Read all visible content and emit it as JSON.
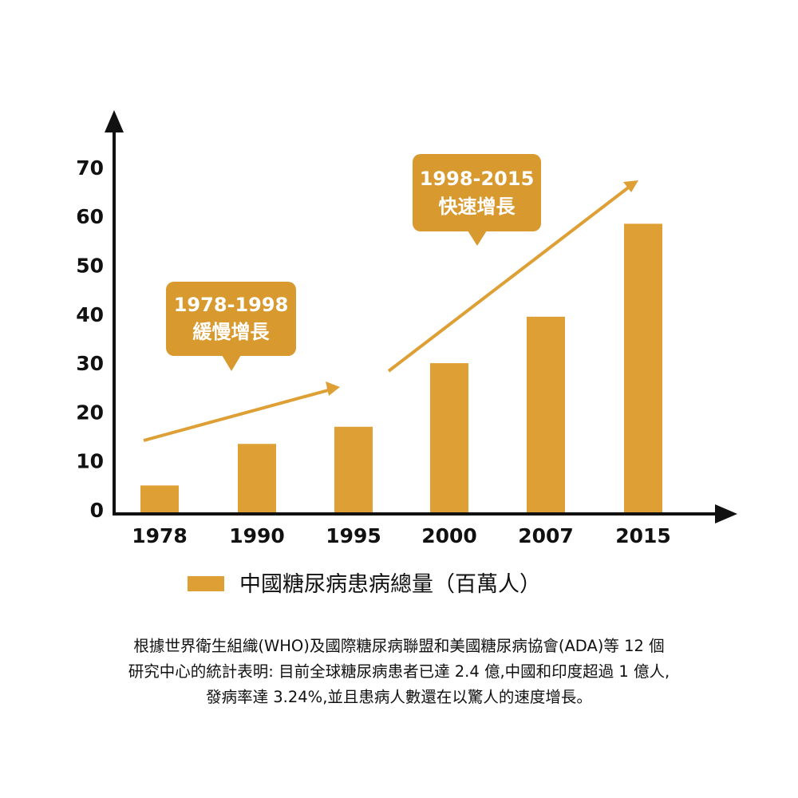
{
  "colors": {
    "bar": "#DEA035",
    "axis": "#111111",
    "callout": "#D8992F"
  },
  "chart_data": {
    "type": "bar",
    "categories": [
      "1978",
      "1990",
      "1995",
      "2000",
      "2007",
      "2015"
    ],
    "values": [
      5,
      13.5,
      17,
      30,
      39.5,
      58.5
    ],
    "ylim": [
      0,
      70
    ],
    "yticks": [
      "0",
      "10",
      "20",
      "30",
      "40",
      "50",
      "60",
      "70"
    ],
    "legend": "中國糖尿病患病總量（百萬人）",
    "legend_position": "bottom",
    "grid": false,
    "annotations": [
      {
        "line1": "1978-1998",
        "line2": "緩慢增長"
      },
      {
        "line1": "1998-2015",
        "line2": "快速增長"
      }
    ]
  },
  "footnote": [
    "根據世界衛生組織(WHO)及國際糖尿病聯盟和美國糖尿病協會(ADA)等 12 個",
    "研究中心的統計表明: 目前全球糖尿病患者已達 2.4 億,中國和印度超過 1 億人,",
    "發病率達 3.24%,並且患病人數還在以驚人的速度增長。"
  ]
}
